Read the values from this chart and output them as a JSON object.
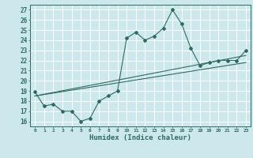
{
  "title": "",
  "xlabel": "Humidex (Indice chaleur)",
  "ylabel": "",
  "xlim": [
    -0.5,
    23.5
  ],
  "ylim": [
    15.5,
    27.5
  ],
  "yticks": [
    16,
    17,
    18,
    19,
    20,
    21,
    22,
    23,
    24,
    25,
    26,
    27
  ],
  "xticks": [
    0,
    1,
    2,
    3,
    4,
    5,
    6,
    7,
    8,
    9,
    10,
    11,
    12,
    13,
    14,
    15,
    16,
    17,
    18,
    19,
    20,
    21,
    22,
    23
  ],
  "bg_color": "#cce8ec",
  "grid_color": "#ffffff",
  "line_color": "#2e6b5e",
  "line1_x": [
    0,
    1,
    2,
    3,
    4,
    5,
    6,
    7,
    8,
    9,
    10,
    11,
    12,
    13,
    14,
    15,
    16,
    17,
    18,
    19,
    20,
    21,
    22,
    23
  ],
  "line1_y": [
    18.9,
    17.5,
    17.7,
    17.0,
    17.0,
    16.0,
    16.3,
    18.0,
    18.5,
    19.0,
    24.2,
    24.8,
    24.0,
    24.4,
    25.2,
    27.0,
    25.6,
    23.2,
    21.5,
    21.8,
    22.0,
    22.0,
    22.0,
    23.0
  ],
  "line2_x": [
    0,
    23
  ],
  "line2_y": [
    18.5,
    21.8
  ],
  "line3_x": [
    0,
    23
  ],
  "line3_y": [
    18.5,
    22.5
  ]
}
